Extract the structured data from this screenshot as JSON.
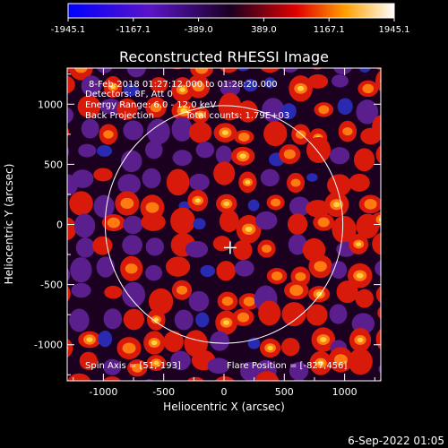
{
  "chart_data": {
    "type": "heatmap",
    "title": "Reconstructed RHESSI Image",
    "xlabel": "Heliocentric X (arcsec)",
    "ylabel": "Heliocentric Y (arcsec)",
    "xlim": [
      -1300,
      1300
    ],
    "ylim": [
      -1300,
      1300
    ],
    "x_ticks": [
      -1000,
      -500,
      0,
      500,
      1000
    ],
    "y_ticks": [
      -1000,
      -500,
      0,
      500,
      1000
    ],
    "x_tick_labels": [
      "-1000",
      "-500",
      "0",
      "500",
      "1000"
    ],
    "y_tick_labels": [
      "-1000",
      "-500",
      "0",
      "500",
      "1000"
    ],
    "colorbar": {
      "range": [
        -1945.1,
        1945.1
      ],
      "ticks": [
        -1945.1,
        -1167.1,
        -389.0,
        389.0,
        1167.1,
        1945.1
      ],
      "tick_labels": [
        "-1945.1",
        "-1167.1",
        "-389.0",
        "389.0",
        "1167.1",
        "1945.1"
      ]
    },
    "annotations": {
      "date_line": "8-Feb-2018 01:27:12.000 to 01:28:20.000",
      "detectors": "Detectors: 8F, Att 0",
      "energy": "Energy Range: 6.0 - 12.0 keV",
      "method": "Back Projection",
      "counts": "Total counts: 1.79E+03",
      "spin_axis": "Spin Axis = [51,-193]",
      "flare_position": "Flare Position = [-827,456]"
    },
    "solar_limb_radius_arcsec": 985,
    "marker_position": [
      51,
      -193
    ],
    "grid": false
  },
  "footer": {
    "timestamp": "6-Sep-2022 01:05"
  }
}
